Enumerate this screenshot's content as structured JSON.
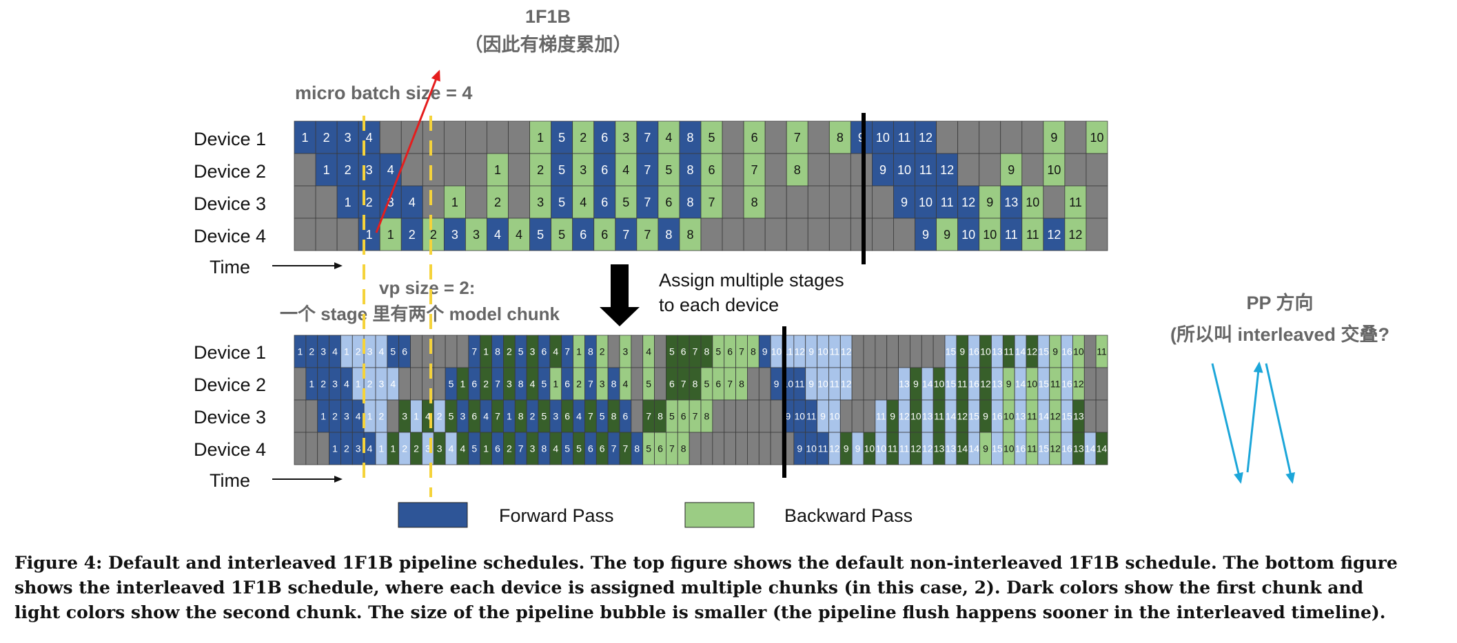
{
  "annotations": {
    "title_line1": "1F1B",
    "title_line2": "（因此有梯度累加）",
    "micro_batch": "micro batch size = 4",
    "vp_line1": "vp size = 2:",
    "vp_line2": "一个 stage 里有两个 model chunk",
    "assign_line1": "Assign multiple stages",
    "assign_line2": "to each device",
    "pp_line1": "PP 方向",
    "pp_line2": "(所以叫 interleaved 交叠?"
  },
  "devices": [
    "Device 1",
    "Device 2",
    "Device 3",
    "Device 4"
  ],
  "time_label": "Time",
  "legend": {
    "forward": "Forward Pass",
    "backward": "Backward Pass"
  },
  "colors": {
    "forward": "#2e5597",
    "forward_light": "#a9c4ea",
    "backward": "#9bcc84",
    "backward_dark": "#375f2a",
    "idle": "#7f7f7f",
    "annotation_text": "#666666",
    "dashed_line": "#f5d33b",
    "red_arrow": "#e51d1d",
    "cyan_arrow": "#1ca6d9"
  },
  "top_schedule": [
    [
      [
        "F",
        "1"
      ],
      [
        "F",
        "2"
      ],
      [
        "F",
        "3"
      ],
      [
        "F",
        "4"
      ],
      [
        "I",
        ""
      ],
      [
        "I",
        ""
      ],
      [
        "I",
        ""
      ],
      [
        "I",
        ""
      ],
      [
        "I",
        ""
      ],
      [
        "I",
        ""
      ],
      [
        "I",
        ""
      ],
      [
        "B",
        "1"
      ],
      [
        "F",
        "5"
      ],
      [
        "B",
        "2"
      ],
      [
        "F",
        "6"
      ],
      [
        "B",
        "3"
      ],
      [
        "F",
        "7"
      ],
      [
        "B",
        "4"
      ],
      [
        "F",
        "8"
      ],
      [
        "B",
        "5"
      ],
      [
        "I",
        ""
      ],
      [
        "B",
        "6"
      ],
      [
        "I",
        ""
      ],
      [
        "B",
        "7"
      ],
      [
        "I",
        ""
      ],
      [
        "B",
        "8"
      ],
      [
        "F",
        "9"
      ],
      [
        "F",
        "10"
      ],
      [
        "F",
        "11"
      ],
      [
        "F",
        "12"
      ],
      [
        "I",
        ""
      ],
      [
        "I",
        ""
      ],
      [
        "I",
        ""
      ],
      [
        "I",
        ""
      ],
      [
        "I",
        ""
      ],
      [
        "B",
        "9"
      ],
      [
        "I",
        ""
      ],
      [
        "B",
        "10"
      ]
    ],
    [
      [
        "I",
        ""
      ],
      [
        "F",
        "1"
      ],
      [
        "F",
        "2"
      ],
      [
        "F",
        "3"
      ],
      [
        "F",
        "4"
      ],
      [
        "I",
        ""
      ],
      [
        "I",
        ""
      ],
      [
        "I",
        ""
      ],
      [
        "I",
        ""
      ],
      [
        "B",
        "1"
      ],
      [
        "I",
        ""
      ],
      [
        "B",
        "2"
      ],
      [
        "F",
        "5"
      ],
      [
        "B",
        "3"
      ],
      [
        "F",
        "6"
      ],
      [
        "B",
        "4"
      ],
      [
        "F",
        "7"
      ],
      [
        "B",
        "5"
      ],
      [
        "F",
        "8"
      ],
      [
        "B",
        "6"
      ],
      [
        "I",
        ""
      ],
      [
        "B",
        "7"
      ],
      [
        "I",
        ""
      ],
      [
        "B",
        "8"
      ],
      [
        "I",
        ""
      ],
      [
        "I",
        ""
      ],
      [
        "I",
        ""
      ],
      [
        "F",
        "9"
      ],
      [
        "F",
        "10"
      ],
      [
        "F",
        "11"
      ],
      [
        "F",
        "12"
      ],
      [
        "I",
        ""
      ],
      [
        "I",
        ""
      ],
      [
        "B",
        "9"
      ],
      [
        "I",
        ""
      ],
      [
        "B",
        "10"
      ],
      [
        "I",
        ""
      ],
      [
        "I",
        ""
      ]
    ],
    [
      [
        "I",
        ""
      ],
      [
        "I",
        ""
      ],
      [
        "F",
        "1"
      ],
      [
        "F",
        "2"
      ],
      [
        "F",
        "3"
      ],
      [
        "F",
        "4"
      ],
      [
        "I",
        ""
      ],
      [
        "B",
        "1"
      ],
      [
        "I",
        ""
      ],
      [
        "B",
        "2"
      ],
      [
        "I",
        ""
      ],
      [
        "B",
        "3"
      ],
      [
        "F",
        "5"
      ],
      [
        "B",
        "4"
      ],
      [
        "F",
        "6"
      ],
      [
        "B",
        "5"
      ],
      [
        "F",
        "7"
      ],
      [
        "B",
        "6"
      ],
      [
        "F",
        "8"
      ],
      [
        "B",
        "7"
      ],
      [
        "I",
        ""
      ],
      [
        "B",
        "8"
      ],
      [
        "I",
        ""
      ],
      [
        "I",
        ""
      ],
      [
        "I",
        ""
      ],
      [
        "I",
        ""
      ],
      [
        "I",
        ""
      ],
      [
        "I",
        ""
      ],
      [
        "F",
        "9"
      ],
      [
        "F",
        "10"
      ],
      [
        "F",
        "11"
      ],
      [
        "F",
        "12"
      ],
      [
        "B",
        "9"
      ],
      [
        "F",
        "13"
      ],
      [
        "B",
        "10"
      ],
      [
        "I",
        ""
      ],
      [
        "B",
        "11"
      ],
      [
        "I",
        ""
      ]
    ],
    [
      [
        "I",
        ""
      ],
      [
        "I",
        ""
      ],
      [
        "I",
        ""
      ],
      [
        "F",
        "1"
      ],
      [
        "B",
        "1"
      ],
      [
        "F",
        "2"
      ],
      [
        "B",
        "2"
      ],
      [
        "F",
        "3"
      ],
      [
        "B",
        "3"
      ],
      [
        "F",
        "4"
      ],
      [
        "B",
        "4"
      ],
      [
        "F",
        "5"
      ],
      [
        "B",
        "5"
      ],
      [
        "F",
        "6"
      ],
      [
        "B",
        "6"
      ],
      [
        "F",
        "7"
      ],
      [
        "B",
        "7"
      ],
      [
        "F",
        "8"
      ],
      [
        "B",
        "8"
      ],
      [
        "I",
        ""
      ],
      [
        "I",
        ""
      ],
      [
        "I",
        ""
      ],
      [
        "I",
        ""
      ],
      [
        "I",
        ""
      ],
      [
        "I",
        ""
      ],
      [
        "I",
        ""
      ],
      [
        "I",
        ""
      ],
      [
        "I",
        ""
      ],
      [
        "I",
        ""
      ],
      [
        "F",
        "9"
      ],
      [
        "B",
        "9"
      ],
      [
        "F",
        "10"
      ],
      [
        "B",
        "10"
      ],
      [
        "F",
        "11"
      ],
      [
        "B",
        "11"
      ],
      [
        "F",
        "12"
      ],
      [
        "B",
        "12"
      ],
      [
        "I",
        ""
      ]
    ]
  ],
  "bottom_schedule": [
    [
      [
        "F",
        "1"
      ],
      [
        "F",
        "2"
      ],
      [
        "F",
        "3"
      ],
      [
        "F",
        "4"
      ],
      [
        "f",
        "1"
      ],
      [
        "f",
        "2"
      ],
      [
        "f",
        "3"
      ],
      [
        "f",
        "4"
      ],
      [
        "F",
        "5"
      ],
      [
        "F",
        "6"
      ],
      [
        "I",
        ""
      ],
      [
        "I",
        ""
      ],
      [
        "I",
        ""
      ],
      [
        "I",
        ""
      ],
      [
        "I",
        ""
      ],
      [
        "F",
        "7"
      ],
      [
        "b",
        "1"
      ],
      [
        "F",
        "8"
      ],
      [
        "b",
        "2"
      ],
      [
        "F",
        "5"
      ],
      [
        "b",
        "3"
      ],
      [
        "F",
        "6"
      ],
      [
        "b",
        "4"
      ],
      [
        "F",
        "7"
      ],
      [
        "B",
        "1"
      ],
      [
        "F",
        "8"
      ],
      [
        "B",
        "2"
      ],
      [
        "I",
        ""
      ],
      [
        "B",
        "3"
      ],
      [
        "I",
        ""
      ],
      [
        "B",
        "4"
      ],
      [
        "I",
        ""
      ],
      [
        "b",
        "5"
      ],
      [
        "b",
        "6"
      ],
      [
        "b",
        "7"
      ],
      [
        "b",
        "8"
      ],
      [
        "B",
        "5"
      ],
      [
        "B",
        "6"
      ],
      [
        "B",
        "7"
      ],
      [
        "B",
        "8"
      ],
      [
        "F",
        "9"
      ],
      [
        "f",
        "10"
      ],
      [
        "f",
        "11"
      ],
      [
        "f",
        "12"
      ],
      [
        "f",
        "9"
      ],
      [
        "f",
        "10"
      ],
      [
        "f",
        "11"
      ],
      [
        "f",
        "12"
      ],
      [
        "I",
        ""
      ],
      [
        "I",
        ""
      ],
      [
        "I",
        ""
      ],
      [
        "I",
        ""
      ],
      [
        "I",
        ""
      ],
      [
        "I",
        ""
      ],
      [
        "I",
        ""
      ],
      [
        "I",
        ""
      ],
      [
        "f",
        "15"
      ],
      [
        "b",
        "9"
      ],
      [
        "f",
        "16"
      ],
      [
        "b",
        "10"
      ],
      [
        "f",
        "13"
      ],
      [
        "b",
        "11"
      ],
      [
        "f",
        "14"
      ],
      [
        "b",
        "12"
      ],
      [
        "f",
        "15"
      ],
      [
        "B",
        "9"
      ],
      [
        "f",
        "16"
      ],
      [
        "B",
        "10"
      ],
      [
        "I",
        ""
      ],
      [
        "B",
        "11"
      ]
    ],
    [
      [
        "I",
        ""
      ],
      [
        "F",
        "1"
      ],
      [
        "F",
        "2"
      ],
      [
        "F",
        "3"
      ],
      [
        "F",
        "4"
      ],
      [
        "f",
        "1"
      ],
      [
        "f",
        "2"
      ],
      [
        "f",
        "3"
      ],
      [
        "f",
        "4"
      ],
      [
        "I",
        ""
      ],
      [
        "I",
        ""
      ],
      [
        "I",
        ""
      ],
      [
        "I",
        ""
      ],
      [
        "F",
        "5"
      ],
      [
        "b",
        "1"
      ],
      [
        "F",
        "6"
      ],
      [
        "b",
        "2"
      ],
      [
        "F",
        "7"
      ],
      [
        "b",
        "3"
      ],
      [
        "F",
        "8"
      ],
      [
        "b",
        "4"
      ],
      [
        "F",
        "5"
      ],
      [
        "B",
        "1"
      ],
      [
        "F",
        "6"
      ],
      [
        "B",
        "2"
      ],
      [
        "F",
        "7"
      ],
      [
        "B",
        "3"
      ],
      [
        "F",
        "8"
      ],
      [
        "B",
        "4"
      ],
      [
        "I",
        ""
      ],
      [
        "B",
        "5"
      ],
      [
        "I",
        ""
      ],
      [
        "b",
        "6"
      ],
      [
        "b",
        "7"
      ],
      [
        "b",
        "8"
      ],
      [
        "B",
        "5"
      ],
      [
        "B",
        "6"
      ],
      [
        "B",
        "7"
      ],
      [
        "B",
        "8"
      ],
      [
        "I",
        ""
      ],
      [
        "I",
        ""
      ],
      [
        "F",
        "9"
      ],
      [
        "F",
        "10"
      ],
      [
        "F",
        "11"
      ],
      [
        "f",
        "9"
      ],
      [
        "f",
        "10"
      ],
      [
        "f",
        "11"
      ],
      [
        "f",
        "12"
      ],
      [
        "I",
        ""
      ],
      [
        "I",
        ""
      ],
      [
        "I",
        ""
      ],
      [
        "I",
        ""
      ],
      [
        "f",
        "13"
      ],
      [
        "b",
        "9"
      ],
      [
        "f",
        "14"
      ],
      [
        "b",
        "10"
      ],
      [
        "f",
        "15"
      ],
      [
        "b",
        "11"
      ],
      [
        "f",
        "16"
      ],
      [
        "b",
        "12"
      ],
      [
        "f",
        "13"
      ],
      [
        "B",
        "9"
      ],
      [
        "f",
        "14"
      ],
      [
        "B",
        "10"
      ],
      [
        "f",
        "15"
      ],
      [
        "B",
        "11"
      ],
      [
        "f",
        "16"
      ],
      [
        "B",
        "12"
      ],
      [
        "I",
        ""
      ],
      [
        "I",
        ""
      ]
    ],
    [
      [
        "I",
        ""
      ],
      [
        "I",
        ""
      ],
      [
        "F",
        "1"
      ],
      [
        "F",
        "2"
      ],
      [
        "F",
        "3"
      ],
      [
        "F",
        "4"
      ],
      [
        "f",
        "1"
      ],
      [
        "f",
        "2"
      ],
      [
        "I",
        ""
      ],
      [
        "b",
        "3"
      ],
      [
        "f",
        "1"
      ],
      [
        "b",
        "4"
      ],
      [
        "f",
        "2"
      ],
      [
        "b",
        "5"
      ],
      [
        "F",
        "3"
      ],
      [
        "b",
        "6"
      ],
      [
        "F",
        "4"
      ],
      [
        "b",
        "7"
      ],
      [
        "F",
        "1"
      ],
      [
        "b",
        "8"
      ],
      [
        "F",
        "2"
      ],
      [
        "b",
        "5"
      ],
      [
        "F",
        "3"
      ],
      [
        "b",
        "6"
      ],
      [
        "F",
        "4"
      ],
      [
        "b",
        "7"
      ],
      [
        "F",
        "5"
      ],
      [
        "b",
        "8"
      ],
      [
        "F",
        "6"
      ],
      [
        "I",
        ""
      ],
      [
        "b",
        "7"
      ],
      [
        "b",
        "8"
      ],
      [
        "B",
        "5"
      ],
      [
        "B",
        "6"
      ],
      [
        "B",
        "7"
      ],
      [
        "B",
        "8"
      ],
      [
        "I",
        ""
      ],
      [
        "I",
        ""
      ],
      [
        "I",
        ""
      ],
      [
        "I",
        ""
      ],
      [
        "I",
        ""
      ],
      [
        "I",
        ""
      ],
      [
        "F",
        "9"
      ],
      [
        "F",
        "10"
      ],
      [
        "F",
        "11"
      ],
      [
        "f",
        "9"
      ],
      [
        "f",
        "10"
      ],
      [
        "I",
        ""
      ],
      [
        "I",
        ""
      ],
      [
        "I",
        ""
      ],
      [
        "f",
        "11"
      ],
      [
        "b",
        "9"
      ],
      [
        "f",
        "12"
      ],
      [
        "b",
        "10"
      ],
      [
        "f",
        "13"
      ],
      [
        "b",
        "11"
      ],
      [
        "f",
        "14"
      ],
      [
        "b",
        "12"
      ],
      [
        "f",
        "15"
      ],
      [
        "b",
        "9"
      ],
      [
        "f",
        "16"
      ],
      [
        "B",
        "10"
      ],
      [
        "f",
        "13"
      ],
      [
        "B",
        "11"
      ],
      [
        "f",
        "14"
      ],
      [
        "B",
        "12"
      ],
      [
        "f",
        "15"
      ],
      [
        "b",
        "13"
      ],
      [
        "I",
        ""
      ],
      [
        "I",
        ""
      ]
    ],
    [
      [
        "I",
        ""
      ],
      [
        "I",
        ""
      ],
      [
        "I",
        ""
      ],
      [
        "F",
        "1"
      ],
      [
        "F",
        "2"
      ],
      [
        "F",
        "3"
      ],
      [
        "F",
        "4"
      ],
      [
        "f",
        "1"
      ],
      [
        "b",
        "1"
      ],
      [
        "f",
        "2"
      ],
      [
        "b",
        "2"
      ],
      [
        "f",
        "3"
      ],
      [
        "b",
        "3"
      ],
      [
        "f",
        "4"
      ],
      [
        "b",
        "4"
      ],
      [
        "F",
        "5"
      ],
      [
        "b",
        "1"
      ],
      [
        "F",
        "6"
      ],
      [
        "b",
        "2"
      ],
      [
        "F",
        "7"
      ],
      [
        "b",
        "3"
      ],
      [
        "F",
        "8"
      ],
      [
        "b",
        "4"
      ],
      [
        "F",
        "5"
      ],
      [
        "b",
        "5"
      ],
      [
        "F",
        "6"
      ],
      [
        "b",
        "6"
      ],
      [
        "F",
        "7"
      ],
      [
        "b",
        "7"
      ],
      [
        "F",
        "8"
      ],
      [
        "B",
        "5"
      ],
      [
        "B",
        "6"
      ],
      [
        "B",
        "7"
      ],
      [
        "B",
        "8"
      ],
      [
        "I",
        ""
      ],
      [
        "I",
        ""
      ],
      [
        "I",
        ""
      ],
      [
        "I",
        ""
      ],
      [
        "I",
        ""
      ],
      [
        "I",
        ""
      ],
      [
        "I",
        ""
      ],
      [
        "I",
        ""
      ],
      [
        "I",
        ""
      ],
      [
        "F",
        "9"
      ],
      [
        "F",
        "10"
      ],
      [
        "F",
        "11"
      ],
      [
        "f",
        "12"
      ],
      [
        "b",
        "9"
      ],
      [
        "f",
        "9"
      ],
      [
        "b",
        "10"
      ],
      [
        "f",
        "10"
      ],
      [
        "b",
        "11"
      ],
      [
        "f",
        "11"
      ],
      [
        "b",
        "12"
      ],
      [
        "f",
        "12"
      ],
      [
        "b",
        "13"
      ],
      [
        "f",
        "13"
      ],
      [
        "b",
        "14"
      ],
      [
        "f",
        "14"
      ],
      [
        "B",
        "9"
      ],
      [
        "f",
        "15"
      ],
      [
        "B",
        "10"
      ],
      [
        "f",
        "16"
      ],
      [
        "B",
        "11"
      ],
      [
        "f",
        "15"
      ],
      [
        "B",
        "12"
      ],
      [
        "f",
        "16"
      ],
      [
        "b",
        "13"
      ],
      [
        "f",
        "14"
      ],
      [
        "b",
        "14"
      ]
    ]
  ],
  "caption": {
    "line1": "Figure 4: Default and interleaved 1F1B pipeline schedules. The top figure shows the default non-interleaved 1F1B schedule. The bottom figure",
    "line2": "shows the interleaved 1F1B schedule, where each device is assigned multiple chunks (in this case, 2). Dark colors show the first chunk and",
    "line3": "light colors show the second chunk. The size of the pipeline bubble is smaller (the pipeline flush happens sooner in the interleaved timeline)."
  }
}
